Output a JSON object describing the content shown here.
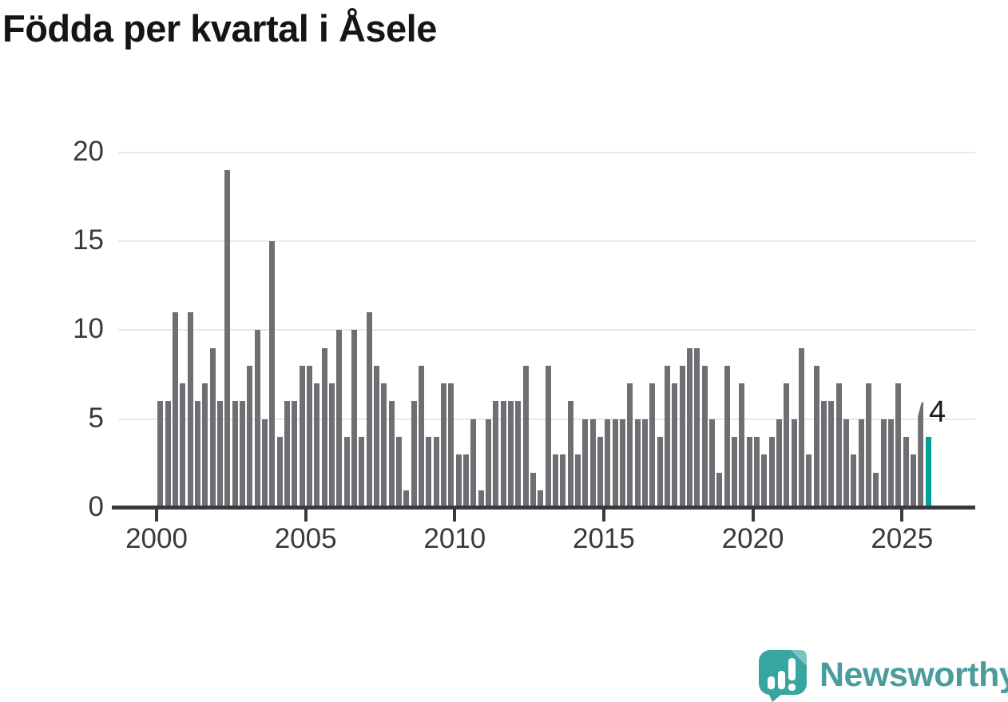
{
  "title": "Födda per kvartal i Åsele",
  "annotation": {
    "label": "4"
  },
  "logo": {
    "name": "Newsworthy"
  },
  "colors": {
    "bar": "#6e6e73",
    "highlight": "#00a099",
    "axis": "#3a3a3e",
    "gridline": "#e9e9e9",
    "tick_label": "#3a3a3a",
    "title": "#151515",
    "logo_teal": "#4a9d9c",
    "logo_bubble": "#38a5a1",
    "logo_bubble_fold": "#7fc2be"
  },
  "chart_data": {
    "type": "bar",
    "title": "Födda per kvartal i Åsele",
    "xlabel": "",
    "ylabel": "",
    "x_unit": "quarter",
    "start_period": "2000Q1",
    "end_period": "2025Q4",
    "ylim": [
      0,
      20
    ],
    "y_ticks": [
      0,
      5,
      10,
      15,
      20
    ],
    "x_ticks": [
      2000,
      2005,
      2010,
      2015,
      2020,
      2025
    ],
    "grid": "horizontal",
    "legend": null,
    "series": [
      {
        "name": "Födda per kvartal",
        "by_year": [
          {
            "year": 2000,
            "q": [
              6,
              6,
              11,
              7
            ]
          },
          {
            "year": 2001,
            "q": [
              11,
              6,
              7,
              9
            ]
          },
          {
            "year": 2002,
            "q": [
              6,
              19,
              6,
              6
            ]
          },
          {
            "year": 2003,
            "q": [
              8,
              10,
              5,
              15
            ]
          },
          {
            "year": 2004,
            "q": [
              4,
              6,
              6,
              8
            ]
          },
          {
            "year": 2005,
            "q": [
              8,
              7,
              9,
              7
            ]
          },
          {
            "year": 2006,
            "q": [
              10,
              4,
              10,
              4
            ]
          },
          {
            "year": 2007,
            "q": [
              11,
              8,
              7,
              6
            ]
          },
          {
            "year": 2008,
            "q": [
              4,
              1,
              6,
              8
            ]
          },
          {
            "year": 2009,
            "q": [
              4,
              4,
              7,
              7
            ]
          },
          {
            "year": 2010,
            "q": [
              3,
              3,
              5,
              1
            ]
          },
          {
            "year": 2011,
            "q": [
              5,
              6,
              6,
              6
            ]
          },
          {
            "year": 2012,
            "q": [
              6,
              8,
              2,
              1
            ]
          },
          {
            "year": 2013,
            "q": [
              8,
              3,
              3,
              6
            ]
          },
          {
            "year": 2014,
            "q": [
              3,
              5,
              5,
              4
            ]
          },
          {
            "year": 2015,
            "q": [
              5,
              5,
              5,
              7
            ]
          },
          {
            "year": 2016,
            "q": [
              5,
              5,
              7,
              4
            ]
          },
          {
            "year": 2017,
            "q": [
              8,
              7,
              8,
              9
            ]
          },
          {
            "year": 2018,
            "q": [
              9,
              8,
              5,
              2
            ]
          },
          {
            "year": 2019,
            "q": [
              8,
              4,
              7,
              4
            ]
          },
          {
            "year": 2020,
            "q": [
              4,
              3,
              4,
              5
            ]
          },
          {
            "year": 2021,
            "q": [
              7,
              5,
              9,
              3
            ]
          },
          {
            "year": 2022,
            "q": [
              8,
              6,
              6,
              7
            ]
          },
          {
            "year": 2023,
            "q": [
              5,
              3,
              5,
              7
            ]
          },
          {
            "year": 2024,
            "q": [
              2,
              5,
              5,
              7
            ]
          },
          {
            "year": 2025,
            "q": [
              4,
              3,
              6,
              4
            ]
          }
        ]
      }
    ],
    "highlight_last": {
      "period": "2025Q4",
      "value": 4,
      "color": "#00a099",
      "label": "4"
    },
    "preliminary_period": "2025Q3"
  }
}
